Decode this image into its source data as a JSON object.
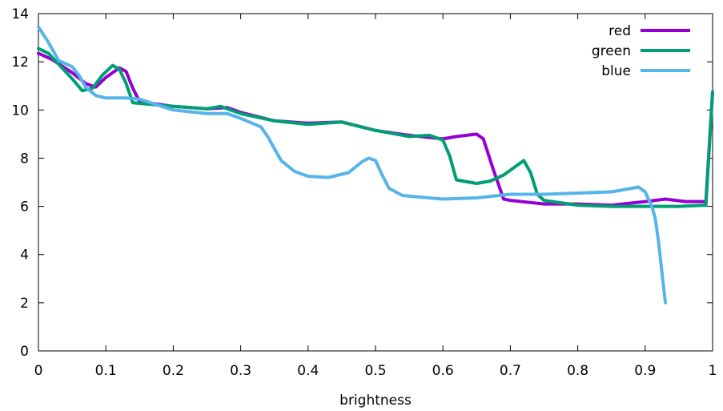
{
  "chart_data": {
    "type": "line",
    "title": "",
    "xlabel": "brightness",
    "ylabel": "",
    "xlim": [
      0,
      1
    ],
    "ylim": [
      0,
      14
    ],
    "xticks": [
      "0",
      "0.1",
      "0.2",
      "0.3",
      "0.4",
      "0.5",
      "0.6",
      "0.7",
      "0.8",
      "0.9",
      "1"
    ],
    "yticks": [
      "0",
      "2",
      "4",
      "6",
      "8",
      "10",
      "12",
      "14"
    ],
    "grid": false,
    "legend": "top-right",
    "series": [
      {
        "name": "red",
        "color": "#9400d3",
        "points": [
          [
            0,
            12.35
          ],
          [
            0.02,
            12.1
          ],
          [
            0.05,
            11.55
          ],
          [
            0.07,
            11.1
          ],
          [
            0.085,
            10.95
          ],
          [
            0.1,
            11.35
          ],
          [
            0.12,
            11.75
          ],
          [
            0.13,
            11.6
          ],
          [
            0.14,
            10.9
          ],
          [
            0.15,
            10.35
          ],
          [
            0.2,
            10.15
          ],
          [
            0.25,
            10.05
          ],
          [
            0.28,
            10.1
          ],
          [
            0.3,
            9.9
          ],
          [
            0.35,
            9.55
          ],
          [
            0.4,
            9.45
          ],
          [
            0.45,
            9.5
          ],
          [
            0.5,
            9.15
          ],
          [
            0.55,
            8.95
          ],
          [
            0.6,
            8.8
          ],
          [
            0.62,
            8.9
          ],
          [
            0.65,
            9.0
          ],
          [
            0.66,
            8.8
          ],
          [
            0.675,
            7.5
          ],
          [
            0.69,
            6.3
          ],
          [
            0.7,
            6.25
          ],
          [
            0.75,
            6.1
          ],
          [
            0.8,
            6.1
          ],
          [
            0.85,
            6.05
          ],
          [
            0.9,
            6.2
          ],
          [
            0.93,
            6.3
          ],
          [
            0.96,
            6.2
          ],
          [
            0.99,
            6.2
          ],
          [
            1.0,
            10.75
          ]
        ]
      },
      {
        "name": "green",
        "color": "#009e73",
        "points": [
          [
            0,
            12.55
          ],
          [
            0.015,
            12.35
          ],
          [
            0.03,
            11.9
          ],
          [
            0.05,
            11.3
          ],
          [
            0.065,
            10.8
          ],
          [
            0.08,
            10.9
          ],
          [
            0.095,
            11.45
          ],
          [
            0.11,
            11.85
          ],
          [
            0.12,
            11.7
          ],
          [
            0.13,
            11.1
          ],
          [
            0.14,
            10.3
          ],
          [
            0.2,
            10.15
          ],
          [
            0.25,
            10.05
          ],
          [
            0.27,
            10.15
          ],
          [
            0.3,
            9.85
          ],
          [
            0.35,
            9.55
          ],
          [
            0.4,
            9.4
          ],
          [
            0.45,
            9.5
          ],
          [
            0.5,
            9.15
          ],
          [
            0.55,
            8.9
          ],
          [
            0.58,
            8.95
          ],
          [
            0.6,
            8.75
          ],
          [
            0.61,
            8.1
          ],
          [
            0.62,
            7.1
          ],
          [
            0.65,
            6.95
          ],
          [
            0.67,
            7.05
          ],
          [
            0.69,
            7.3
          ],
          [
            0.71,
            7.7
          ],
          [
            0.72,
            7.9
          ],
          [
            0.73,
            7.4
          ],
          [
            0.74,
            6.5
          ],
          [
            0.75,
            6.25
          ],
          [
            0.8,
            6.05
          ],
          [
            0.85,
            6.0
          ],
          [
            0.9,
            6.0
          ],
          [
            0.95,
            6.0
          ],
          [
            0.99,
            6.05
          ],
          [
            1.0,
            10.75
          ]
        ]
      },
      {
        "name": "blue",
        "color": "#56b4e9",
        "points": [
          [
            0,
            13.45
          ],
          [
            0.015,
            12.8
          ],
          [
            0.03,
            12.05
          ],
          [
            0.05,
            11.8
          ],
          [
            0.06,
            11.45
          ],
          [
            0.07,
            10.95
          ],
          [
            0.085,
            10.6
          ],
          [
            0.1,
            10.5
          ],
          [
            0.13,
            10.5
          ],
          [
            0.15,
            10.45
          ],
          [
            0.2,
            10.0
          ],
          [
            0.25,
            9.85
          ],
          [
            0.28,
            9.85
          ],
          [
            0.3,
            9.65
          ],
          [
            0.33,
            9.3
          ],
          [
            0.34,
            8.9
          ],
          [
            0.36,
            7.9
          ],
          [
            0.38,
            7.45
          ],
          [
            0.4,
            7.25
          ],
          [
            0.43,
            7.2
          ],
          [
            0.46,
            7.4
          ],
          [
            0.48,
            7.85
          ],
          [
            0.49,
            8.0
          ],
          [
            0.5,
            7.9
          ],
          [
            0.51,
            7.3
          ],
          [
            0.52,
            6.75
          ],
          [
            0.54,
            6.45
          ],
          [
            0.6,
            6.3
          ],
          [
            0.65,
            6.35
          ],
          [
            0.7,
            6.5
          ],
          [
            0.75,
            6.5
          ],
          [
            0.8,
            6.55
          ],
          [
            0.85,
            6.6
          ],
          [
            0.88,
            6.75
          ],
          [
            0.89,
            6.8
          ],
          [
            0.9,
            6.6
          ],
          [
            0.91,
            6.0
          ],
          [
            0.915,
            5.5
          ],
          [
            0.92,
            4.5
          ],
          [
            0.925,
            3.2
          ],
          [
            0.93,
            2.0
          ]
        ]
      }
    ]
  }
}
